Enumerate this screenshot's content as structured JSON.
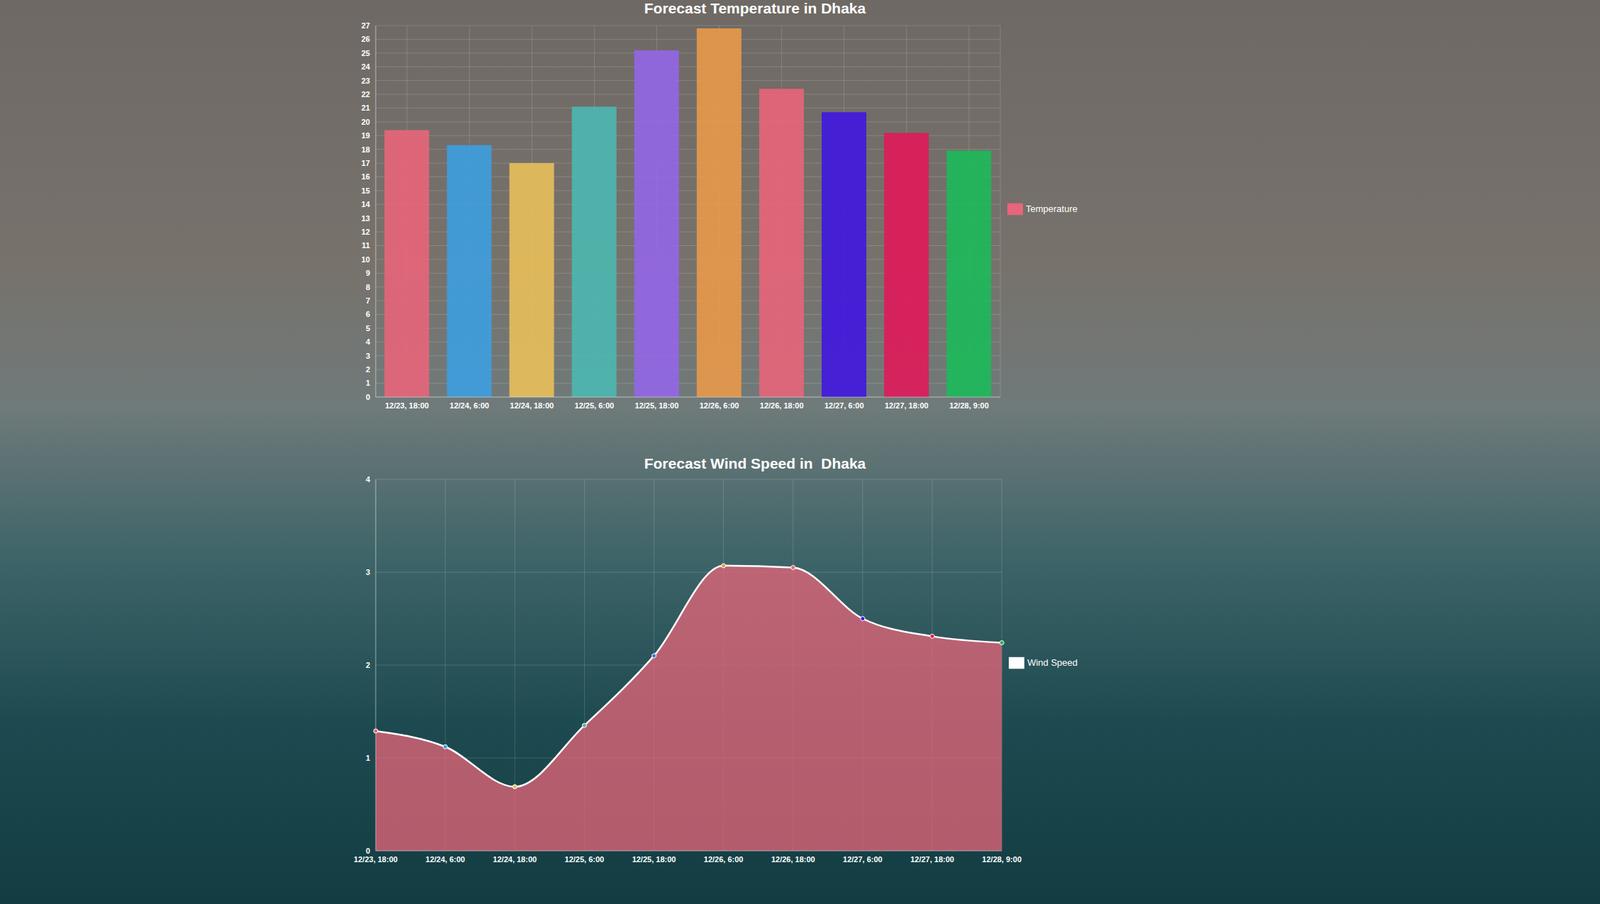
{
  "chart_data": [
    {
      "type": "bar",
      "title": "Forecast Temperature in Dhaka",
      "categories": [
        "12/23, 18:00",
        "12/24, 6:00",
        "12/24, 18:00",
        "12/25, 6:00",
        "12/25, 18:00",
        "12/26, 6:00",
        "12/26, 18:00",
        "12/27, 6:00",
        "12/27, 18:00",
        "12/28, 9:00"
      ],
      "series": [
        {
          "name": "Temperature",
          "color": "#e8657a",
          "values": [
            19.4,
            18.3,
            17.0,
            21.1,
            25.2,
            26.8,
            22.4,
            20.7,
            19.2,
            17.9
          ],
          "colors": [
            "#e8657a",
            "#3d9ee0",
            "#e9bf5a",
            "#4bb8b0",
            "#9366e8",
            "#e9994a",
            "#e8657a",
            "#4016e0",
            "#e01a5a",
            "#1cba5a"
          ]
        }
      ],
      "ylim": [
        0,
        27
      ],
      "yticks": [
        0,
        1,
        2,
        3,
        4,
        5,
        6,
        7,
        8,
        9,
        10,
        11,
        12,
        13,
        14,
        15,
        16,
        17,
        18,
        19,
        20,
        21,
        22,
        23,
        24,
        25,
        26,
        27
      ],
      "grid": true,
      "legend": "right"
    },
    {
      "type": "area",
      "title": "Forecast Wind Speed in  Dhaka",
      "categories": [
        "12/23, 18:00",
        "12/24, 6:00",
        "12/24, 18:00",
        "12/25, 6:00",
        "12/25, 18:00",
        "12/26, 6:00",
        "12/26, 18:00",
        "12/27, 6:00",
        "12/27, 18:00",
        "12/28, 9:00"
      ],
      "series": [
        {
          "name": "Wind Speed",
          "color": "#e8657a",
          "marker": "circle",
          "line_style": "solid",
          "values": [
            1.29,
            1.12,
            0.69,
            1.35,
            2.1,
            3.07,
            3.05,
            2.5,
            2.31,
            2.24
          ],
          "colors": [
            "#e8657a",
            "#3d9ee0",
            "#e9bf5a",
            "#4bb8b0",
            "#4a6ee0",
            "#e9994a",
            "#e8657a",
            "#4016e0",
            "#e01a5a",
            "#1cba5a"
          ]
        }
      ],
      "ylim": [
        0,
        4
      ],
      "yticks": [
        0,
        1,
        2,
        3,
        4
      ],
      "grid": true,
      "legend": "right"
    }
  ]
}
